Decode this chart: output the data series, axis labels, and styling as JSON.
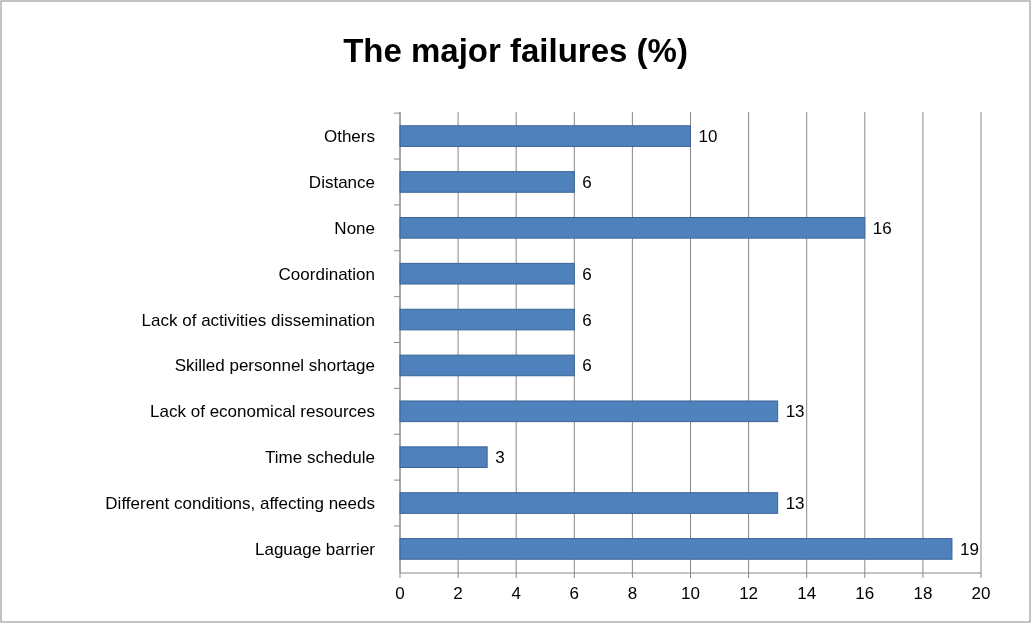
{
  "chart_data": {
    "type": "bar",
    "title": "The major failures (%)",
    "orientation": "horizontal",
    "categories": [
      "Others",
      "Distance",
      "None",
      "Coordination",
      "Lack of activities dissemination",
      "Skilled personnel shortage",
      "Lack of economical resources",
      "Time schedule",
      "Different conditions, affecting needs",
      "Laguage barrier"
    ],
    "values": [
      10,
      6,
      16,
      6,
      6,
      6,
      13,
      3,
      13,
      19
    ],
    "color": "#4f81bd",
    "xlim": [
      0,
      20
    ],
    "xticks": [
      0,
      2,
      4,
      6,
      8,
      10,
      12,
      14,
      16,
      18,
      20
    ],
    "grid": "x",
    "data_labels": true
  }
}
